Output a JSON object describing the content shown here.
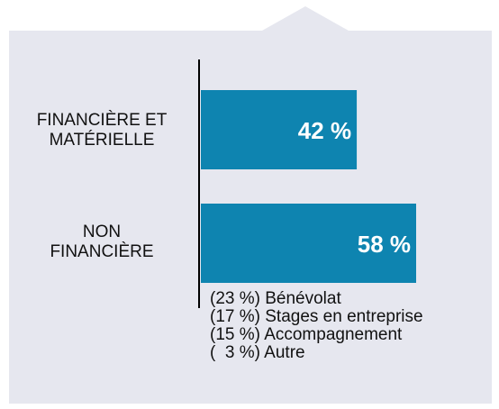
{
  "chart_data": {
    "type": "bar",
    "orientation": "horizontal",
    "categories": [
      "FINANCIÈRE ET\nMATÉRIELLE",
      "NON\nFINANCIÈRE"
    ],
    "values": [
      42,
      58
    ],
    "value_labels": [
      "42 %",
      "58 %"
    ],
    "xlim": [
      0,
      100
    ],
    "bar_color": "#0e84b0",
    "grid": false,
    "breakdown": {
      "of_category": "NON\nFINANCIÈRE",
      "items": [
        {
          "pct": "23 %",
          "label": "Bénévolat",
          "text": "(23 %) Bénévolat"
        },
        {
          "pct": "17 %",
          "label": "Stages en entreprise",
          "text": "(17 %) Stages en entreprise"
        },
        {
          "pct": "15 %",
          "label": "Accompagnement",
          "text": "(15 %) Accompagnement"
        },
        {
          "pct": "3 %",
          "label": "Autre",
          "text": "(  3 %) Autre"
        }
      ]
    }
  },
  "colors": {
    "panel": "#e6e7ef",
    "bar": "#0e84b0",
    "axis": "#000000",
    "label_text": "#111111",
    "bar_text": "#ffffff"
  }
}
